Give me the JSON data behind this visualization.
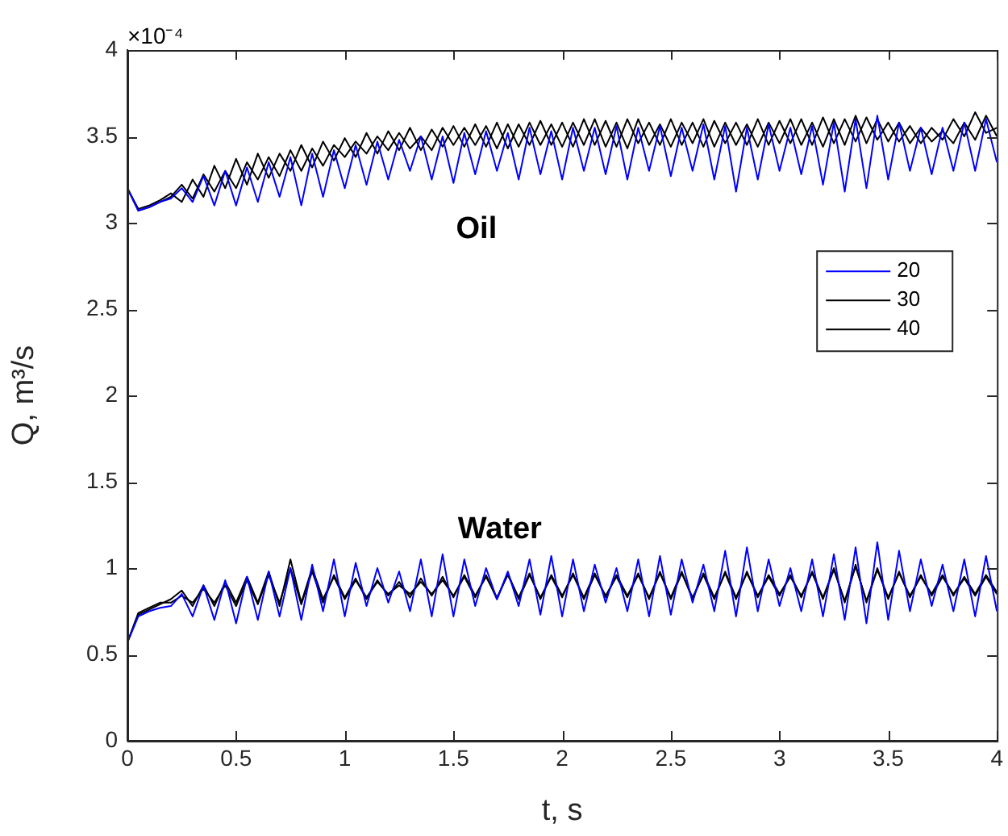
{
  "chart_data": {
    "type": "line",
    "xlabel": "t, s",
    "ylabel": "Q, m³/s",
    "annotations": [
      "×10⁻⁴",
      "Oil",
      "Water"
    ],
    "x": [
      0,
      0.05,
      0.1,
      0.15,
      0.2,
      0.25,
      0.3,
      0.35,
      0.4,
      0.45,
      0.5,
      0.55,
      0.6,
      0.65,
      0.7,
      0.75,
      0.8,
      0.85,
      0.9,
      0.95,
      1,
      1.05,
      1.1,
      1.15,
      1.2,
      1.25,
      1.3,
      1.35,
      1.4,
      1.45,
      1.5,
      1.55,
      1.6,
      1.65,
      1.7,
      1.75,
      1.8,
      1.85,
      1.9,
      1.95,
      2,
      2.05,
      2.1,
      2.15,
      2.2,
      2.25,
      2.3,
      2.35,
      2.4,
      2.45,
      2.5,
      2.55,
      2.6,
      2.65,
      2.7,
      2.75,
      2.8,
      2.85,
      2.9,
      2.95,
      3,
      3.05,
      3.1,
      3.15,
      3.2,
      3.25,
      3.3,
      3.35,
      3.4,
      3.45,
      3.5,
      3.55,
      3.6,
      3.65,
      3.7,
      3.75,
      3.8,
      3.85,
      3.9,
      3.95,
      4
    ],
    "xlim": [
      0,
      4
    ],
    "xticks": [
      0,
      0.5,
      1,
      1.5,
      2,
      2.5,
      3,
      3.5,
      4
    ],
    "ylim": [
      0,
      4
    ],
    "yticks": [
      0,
      0.5,
      1,
      1.5,
      2,
      2.5,
      3,
      3.5,
      4
    ],
    "legend": "right",
    "grid": false,
    "marker": "none",
    "line_style": "solid",
    "series": [
      {
        "name": "20",
        "color": "#0000ff",
        "values": [
          3.2,
          3.07,
          3.09,
          3.12,
          3.14,
          3.2,
          3.12,
          3.27,
          3.1,
          3.3,
          3.1,
          3.32,
          3.12,
          3.35,
          3.15,
          3.38,
          3.1,
          3.4,
          3.15,
          3.42,
          3.2,
          3.45,
          3.22,
          3.47,
          3.25,
          3.48,
          3.3,
          3.5,
          3.25,
          3.5,
          3.23,
          3.52,
          3.28,
          3.53,
          3.3,
          3.52,
          3.25,
          3.55,
          3.28,
          3.53,
          3.25,
          3.55,
          3.3,
          3.55,
          3.28,
          3.56,
          3.25,
          3.55,
          3.3,
          3.56,
          3.27,
          3.55,
          3.3,
          3.57,
          3.25,
          3.56,
          3.18,
          3.55,
          3.25,
          3.57,
          3.3,
          3.55,
          3.28,
          3.56,
          3.22,
          3.58,
          3.18,
          3.6,
          3.2,
          3.62,
          3.25,
          3.58,
          3.3,
          3.55,
          3.28,
          3.55,
          3.3,
          3.58,
          3.3,
          3.6,
          3.35
        ]
      },
      {
        "name": "30",
        "color": "#000000",
        "values": [
          3.2,
          3.07,
          3.09,
          3.12,
          3.15,
          3.22,
          3.14,
          3.28,
          3.18,
          3.3,
          3.2,
          3.35,
          3.25,
          3.38,
          3.27,
          3.42,
          3.3,
          3.43,
          3.33,
          3.45,
          3.38,
          3.47,
          3.4,
          3.5,
          3.42,
          3.52,
          3.43,
          3.5,
          3.42,
          3.55,
          3.45,
          3.55,
          3.45,
          3.56,
          3.43,
          3.57,
          3.44,
          3.58,
          3.45,
          3.57,
          3.44,
          3.58,
          3.45,
          3.6,
          3.44,
          3.58,
          3.43,
          3.6,
          3.45,
          3.57,
          3.44,
          3.58,
          3.46,
          3.6,
          3.44,
          3.58,
          3.45,
          3.57,
          3.44,
          3.58,
          3.46,
          3.6,
          3.45,
          3.58,
          3.44,
          3.6,
          3.45,
          3.62,
          3.46,
          3.6,
          3.47,
          3.58,
          3.46,
          3.55,
          3.47,
          3.53,
          3.46,
          3.58,
          3.48,
          3.62,
          3.5
        ]
      },
      {
        "name": "40",
        "color": "#000000",
        "values": [
          3.2,
          3.08,
          3.1,
          3.13,
          3.17,
          3.12,
          3.25,
          3.15,
          3.33,
          3.2,
          3.37,
          3.22,
          3.4,
          3.26,
          3.4,
          3.3,
          3.45,
          3.32,
          3.47,
          3.36,
          3.49,
          3.38,
          3.52,
          3.4,
          3.53,
          3.42,
          3.55,
          3.42,
          3.54,
          3.44,
          3.56,
          3.44,
          3.57,
          3.44,
          3.58,
          3.43,
          3.57,
          3.45,
          3.59,
          3.45,
          3.58,
          3.44,
          3.6,
          3.45,
          3.59,
          3.44,
          3.6,
          3.46,
          3.58,
          3.45,
          3.6,
          3.45,
          3.58,
          3.44,
          3.59,
          3.46,
          3.58,
          3.45,
          3.6,
          3.45,
          3.59,
          3.46,
          3.6,
          3.45,
          3.61,
          3.46,
          3.6,
          3.47,
          3.61,
          3.48,
          3.58,
          3.47,
          3.56,
          3.46,
          3.55,
          3.48,
          3.6,
          3.5,
          3.64,
          3.52,
          3.55
        ]
      },
      {
        "color": "#0000ff",
        "values": [
          0.57,
          0.72,
          0.75,
          0.77,
          0.78,
          0.85,
          0.72,
          0.9,
          0.7,
          0.93,
          0.68,
          0.95,
          0.7,
          0.98,
          0.72,
          1.0,
          0.7,
          1.02,
          0.75,
          1.05,
          0.72,
          1.03,
          0.78,
          1.0,
          0.8,
          0.98,
          0.75,
          1.05,
          0.72,
          1.08,
          0.72,
          1.05,
          0.78,
          1.0,
          0.82,
          0.98,
          0.78,
          1.05,
          0.73,
          1.07,
          0.72,
          1.05,
          0.75,
          1.02,
          0.8,
          1.0,
          0.75,
          1.05,
          0.72,
          1.07,
          0.73,
          1.05,
          0.8,
          1.02,
          0.75,
          1.1,
          0.72,
          1.12,
          0.75,
          1.05,
          0.78,
          1.0,
          0.75,
          1.05,
          0.72,
          1.08,
          0.7,
          1.12,
          0.68,
          1.15,
          0.7,
          1.1,
          0.75,
          1.05,
          0.78,
          1.02,
          0.75,
          1.05,
          0.72,
          1.07,
          0.75
        ]
      },
      {
        "color": "#000000",
        "values": [
          0.57,
          0.73,
          0.76,
          0.79,
          0.82,
          0.87,
          0.78,
          0.9,
          0.78,
          0.92,
          0.8,
          0.95,
          0.8,
          0.98,
          0.78,
          1.05,
          0.8,
          1.0,
          0.82,
          0.95,
          0.82,
          0.93,
          0.83,
          0.92,
          0.85,
          0.9,
          0.85,
          0.92,
          0.85,
          0.93,
          0.84,
          0.95,
          0.83,
          0.96,
          0.82,
          0.97,
          0.82,
          0.96,
          0.83,
          0.95,
          0.83,
          0.97,
          0.82,
          0.96,
          0.84,
          0.95,
          0.83,
          0.97,
          0.82,
          0.98,
          0.82,
          0.97,
          0.83,
          0.96,
          0.82,
          0.98,
          0.83,
          0.97,
          0.84,
          0.95,
          0.84,
          0.96,
          0.83,
          0.98,
          0.82,
          1.0,
          0.8,
          1.02,
          0.8,
          1.0,
          0.82,
          0.98,
          0.83,
          0.96,
          0.84,
          0.95,
          0.85,
          0.94,
          0.84,
          0.95,
          0.85
        ]
      },
      {
        "color": "#000000",
        "values": [
          0.57,
          0.74,
          0.77,
          0.8,
          0.8,
          0.84,
          0.8,
          0.88,
          0.8,
          0.9,
          0.78,
          0.93,
          0.79,
          0.96,
          0.8,
          1.0,
          0.79,
          0.98,
          0.8,
          0.96,
          0.83,
          0.94,
          0.82,
          0.93,
          0.84,
          0.92,
          0.83,
          0.94,
          0.84,
          0.95,
          0.83,
          0.96,
          0.84,
          0.95,
          0.83,
          0.96,
          0.83,
          0.97,
          0.82,
          0.96,
          0.84,
          0.96,
          0.83,
          0.97,
          0.83,
          0.96,
          0.84,
          0.96,
          0.83,
          0.97,
          0.83,
          0.98,
          0.82,
          0.97,
          0.83,
          0.97,
          0.82,
          0.98,
          0.83,
          0.96,
          0.85,
          0.95,
          0.84,
          0.97,
          0.83,
          0.99,
          0.81,
          1.01,
          0.81,
          0.99,
          0.83,
          0.97,
          0.84,
          0.95,
          0.85,
          0.96,
          0.84,
          0.95,
          0.85,
          0.96,
          0.86
        ]
      }
    ]
  }
}
